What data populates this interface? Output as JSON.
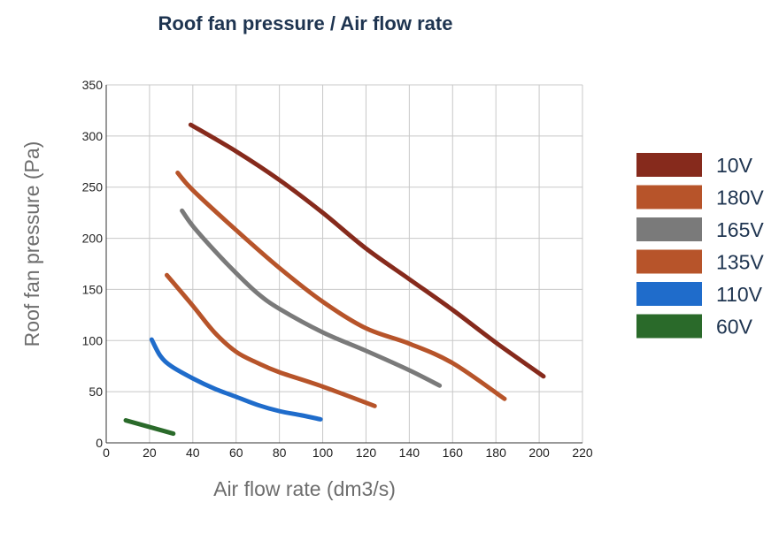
{
  "chart_data": {
    "type": "line",
    "title": "Roof fan pressure / Air flow rate",
    "xlabel": "Air flow rate (dm3/s)",
    "ylabel": "Roof fan pressure (Pa)",
    "xlim": [
      0,
      220
    ],
    "ylim": [
      0,
      350
    ],
    "xticks": [
      0,
      20,
      40,
      60,
      80,
      100,
      120,
      140,
      160,
      180,
      200,
      220
    ],
    "yticks": [
      0,
      50,
      100,
      150,
      200,
      250,
      300,
      350
    ],
    "grid": true,
    "legend_position": "right",
    "series": [
      {
        "name": "10V",
        "color": "#862a1c",
        "x": [
          39,
          60,
          80,
          100,
          120,
          140,
          160,
          180,
          202
        ],
        "y": [
          311,
          285,
          257,
          225,
          190,
          160,
          130,
          98,
          65
        ]
      },
      {
        "name": "180V",
        "color": "#b7542a",
        "x": [
          33,
          40,
          60,
          80,
          100,
          120,
          140,
          160,
          184
        ],
        "y": [
          264,
          247,
          208,
          171,
          138,
          112,
          97,
          78,
          43
        ]
      },
      {
        "name": "165V",
        "color": "#7a7a7a",
        "x": [
          35,
          40,
          50,
          60,
          70,
          80,
          100,
          120,
          140,
          154
        ],
        "y": [
          227,
          212,
          188,
          166,
          146,
          131,
          108,
          90,
          71,
          56
        ]
      },
      {
        "name": "135V",
        "color": "#b7542a",
        "x": [
          28,
          40,
          50,
          60,
          70,
          80,
          100,
          124
        ],
        "y": [
          164,
          134,
          108,
          89,
          78,
          69,
          55,
          36
        ]
      },
      {
        "name": "110V",
        "color": "#1f6ccb",
        "x": [
          21,
          25,
          30,
          40,
          50,
          60,
          70,
          80,
          90,
          99
        ],
        "y": [
          101,
          85,
          75,
          63,
          53,
          45,
          37,
          31,
          27,
          23
        ]
      },
      {
        "name": "60V",
        "color": "#2a6a2a",
        "x": [
          9,
          31
        ],
        "y": [
          22,
          9
        ]
      }
    ]
  }
}
